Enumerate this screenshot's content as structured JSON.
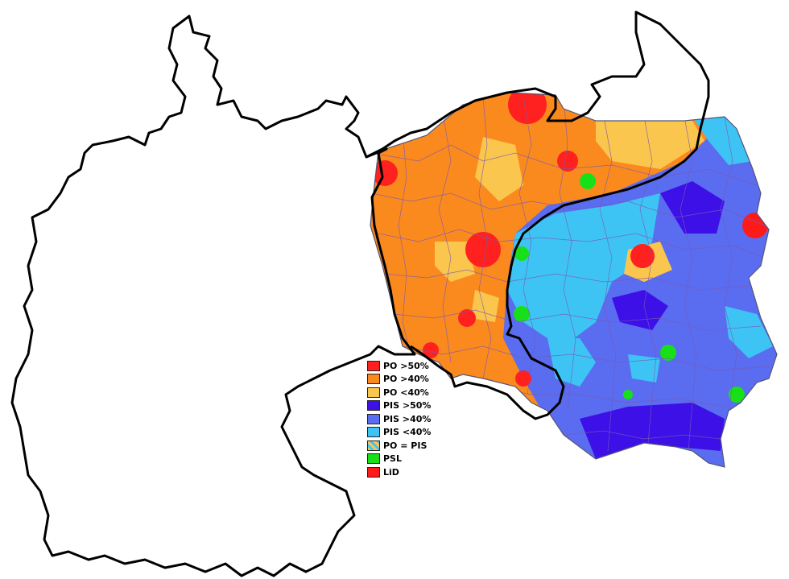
{
  "legend": {
    "items": [
      {
        "label": "PO >50%",
        "color": "#ff2020"
      },
      {
        "label": "PO >40%",
        "color": "#fb8a1e"
      },
      {
        "label": "PO <40%",
        "color": "#fbc64e"
      },
      {
        "label": "PIS >50%",
        "color": "#3c10e6"
      },
      {
        "label": "PIS >40%",
        "color": "#5a6cf0"
      },
      {
        "label": "PIS <40%",
        "color": "#3ec4f4"
      },
      {
        "label": "PO = PIS",
        "color": "#9ad2c8",
        "pattern": "hatched"
      },
      {
        "label": "PSL",
        "color": "#18e018"
      },
      {
        "label": "LiD",
        "color": "#ff1a1a"
      }
    ]
  },
  "colors": {
    "outline": "#000000",
    "district_border": "#7a5ab4",
    "background": "#ffffff"
  }
}
